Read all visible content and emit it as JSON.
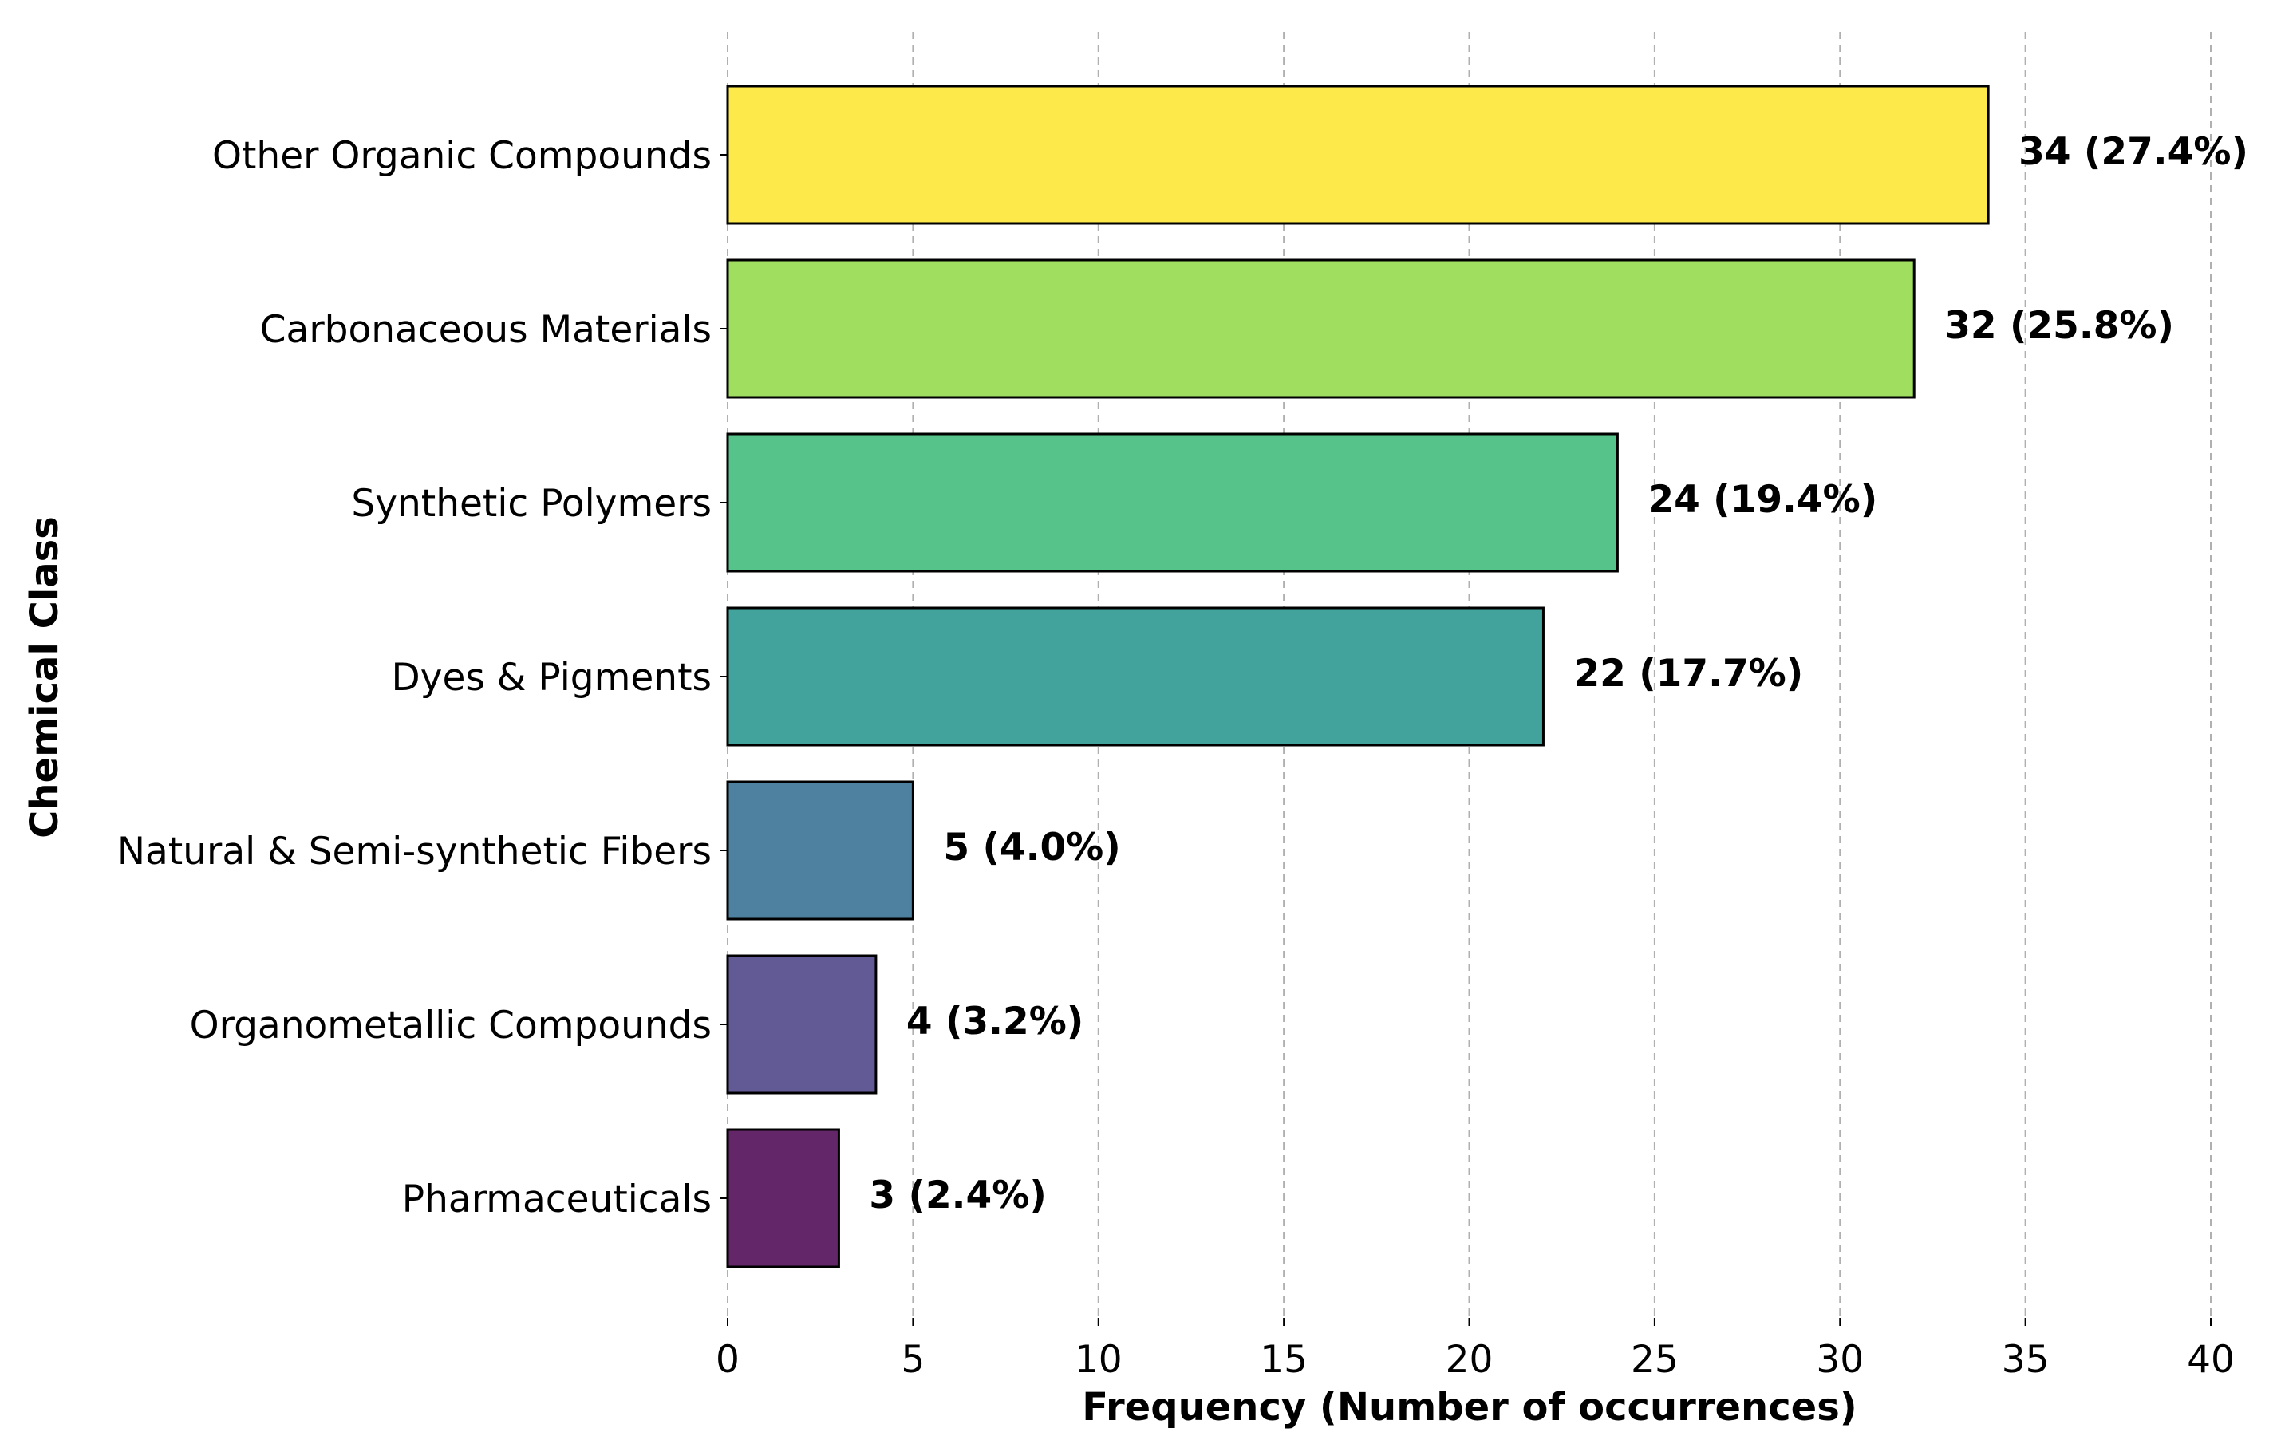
{
  "chart_data": {
    "type": "bar",
    "orientation": "horizontal",
    "categories": [
      "Other Organic Compounds",
      "Carbonaceous Materials",
      "Synthetic Polymers",
      "Dyes & Pigments",
      "Natural & Semi-synthetic Fibers",
      "Organometallic Compounds",
      "Pharmaceuticals"
    ],
    "values": [
      34,
      32,
      24,
      22,
      5,
      4,
      3
    ],
    "value_labels": [
      "34 (27.4%)",
      "32 (25.8%)",
      "24 (19.4%)",
      "22 (17.7%)",
      "5 (4.0%)",
      "4 (3.2%)",
      "3 (2.4%)"
    ],
    "colors": [
      "#fde94a",
      "#a0de5f",
      "#56c38b",
      "#42a39c",
      "#4e80a0",
      "#625a94",
      "#622669"
    ],
    "xlabel": "Frequency (Number of occurrences)",
    "ylabel": "Chemical Class",
    "xlim": [
      0,
      40
    ],
    "xticks": [
      0,
      5,
      10,
      15,
      20,
      25,
      30,
      35,
      40
    ],
    "grid": "x, dashed",
    "legend": "none"
  }
}
